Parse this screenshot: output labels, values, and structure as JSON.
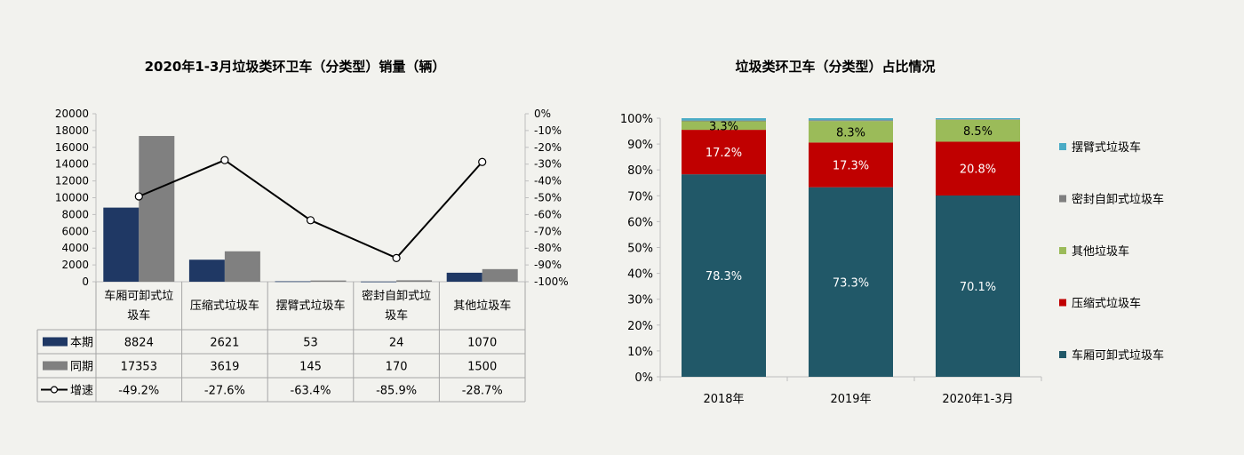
{
  "chart_data": [
    {
      "type": "bar",
      "title": "2020年1-3月垃圾类环卫车（分类型）销量（辆）",
      "categories": [
        "车厢可卸式垃圾车",
        "压缩式垃圾车",
        "摆臂式垃圾车",
        "密封自卸式垃圾车",
        "其他垃圾车"
      ],
      "series": [
        {
          "name": "本期",
          "type": "bar",
          "axis": "left",
          "color": "#1f3864",
          "values": [
            8824,
            2621,
            53,
            24,
            1070
          ],
          "labels": [
            "8824",
            "2621",
            "53",
            "24",
            "1070"
          ]
        },
        {
          "name": "同期",
          "type": "bar",
          "axis": "left",
          "color": "#808080",
          "values": [
            17353,
            3619,
            145,
            170,
            1500
          ],
          "labels": [
            "17353",
            "3619",
            "145",
            "170",
            "1500"
          ]
        },
        {
          "name": "增速",
          "type": "line",
          "axis": "right",
          "color": "#000000",
          "values": [
            -49.2,
            -27.6,
            -63.4,
            -85.9,
            -28.7
          ],
          "labels": [
            "-49.2%",
            "-27.6%",
            "-63.4%",
            "-85.9%",
            "-28.7%"
          ]
        }
      ],
      "y_left": {
        "min": 0,
        "max": 20000,
        "ticks": [
          "0",
          "2000",
          "4000",
          "6000",
          "8000",
          "10000",
          "12000",
          "14000",
          "16000",
          "18000",
          "20000"
        ]
      },
      "y_right": {
        "min": -100,
        "max": 0,
        "ticks": [
          "0%",
          "-10%",
          "-20%",
          "-30%",
          "-40%",
          "-50%",
          "-60%",
          "-70%",
          "-80%",
          "-90%",
          "-100%"
        ]
      },
      "data_table": true
    },
    {
      "type": "bar",
      "stacked": true,
      "title": "垃圾类环卫车（分类型）占比情况",
      "categories": [
        "2018年",
        "2019年",
        "2020年1-3月"
      ],
      "series": [
        {
          "name": "车厢可卸式垃圾车",
          "color": "#215868",
          "values": [
            78.3,
            73.3,
            70.1
          ],
          "labels": [
            "78.3%",
            "73.3%",
            "70.1%"
          ]
        },
        {
          "name": "压缩式垃圾车",
          "color": "#c00000",
          "values": [
            17.2,
            17.3,
            20.8
          ],
          "labels": [
            "17.2%",
            "17.3%",
            "20.8%"
          ]
        },
        {
          "name": "其他垃圾车",
          "color": "#9bbb59",
          "values": [
            3.3,
            8.3,
            8.5
          ],
          "labels": [
            "3.3%",
            "8.3%",
            "8.5%"
          ]
        },
        {
          "name": "密封自卸式垃圾车",
          "color": "#7f7f7f",
          "values": [
            0.3,
            0.3,
            0.2
          ],
          "labels": []
        },
        {
          "name": "摆臂式垃圾车",
          "color": "#4bacc6",
          "values": [
            0.9,
            0.8,
            0.4
          ],
          "labels": []
        }
      ],
      "legend_order": [
        "摆臂式垃圾车",
        "密封自卸式垃圾车",
        "其他垃圾车",
        "压缩式垃圾车",
        "车厢可卸式垃圾车"
      ],
      "y": {
        "min": 0,
        "max": 100,
        "ticks": [
          "0%",
          "10%",
          "20%",
          "30%",
          "40%",
          "50%",
          "60%",
          "70%",
          "80%",
          "90%",
          "100%"
        ]
      },
      "legend_position": "right"
    }
  ]
}
